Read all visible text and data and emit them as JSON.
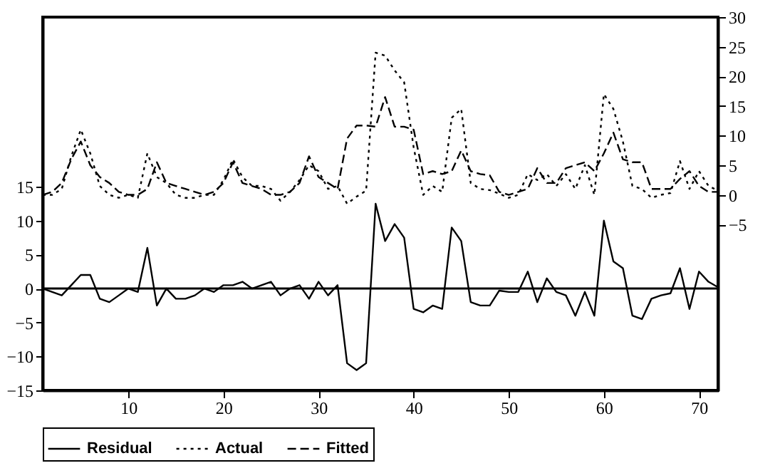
{
  "chart_data": {
    "type": "line",
    "x": [
      1,
      2,
      3,
      4,
      5,
      6,
      7,
      8,
      9,
      10,
      11,
      12,
      13,
      14,
      15,
      16,
      17,
      18,
      19,
      20,
      21,
      22,
      23,
      24,
      25,
      26,
      27,
      28,
      29,
      30,
      31,
      32,
      33,
      34,
      35,
      36,
      37,
      38,
      39,
      40,
      41,
      42,
      43,
      44,
      45,
      46,
      47,
      48,
      49,
      50,
      51,
      52,
      53,
      54,
      55,
      56,
      57,
      58,
      59,
      60,
      61,
      62,
      63,
      64,
      65,
      66,
      67,
      68,
      69,
      70,
      71,
      72
    ],
    "series": [
      {
        "name": "Residual",
        "color": "#000000",
        "line_style": "solid",
        "values": [
          0,
          -0.5,
          -1,
          0.5,
          2,
          2,
          -1.5,
          -2,
          -1,
          0,
          -0.5,
          6,
          -2.5,
          0,
          -1.5,
          -1.5,
          -1,
          0,
          -0.5,
          0.5,
          0.5,
          1,
          0,
          0.5,
          1,
          -1,
          0,
          0.5,
          -1.5,
          1,
          -1,
          0.5,
          -11,
          -12,
          -11,
          12.5,
          7,
          9.5,
          7.5,
          -3,
          -3.5,
          -2.5,
          -3,
          9,
          7,
          -2,
          -2.5,
          -2.5,
          -0.3,
          -0.5,
          -0.5,
          2.5,
          -2,
          1.5,
          -0.5,
          -1,
          -4,
          -0.5,
          -4,
          10,
          4,
          3,
          -4,
          -4.5,
          -1.5,
          -1,
          -0.7,
          3,
          -3,
          2.5,
          1,
          0.2
        ]
      },
      {
        "name": "Actual",
        "color": "#000000",
        "line_style": "dotted",
        "axis": "y2",
        "values": [
          0,
          0,
          1,
          6.5,
          11,
          7,
          1.5,
          0,
          -0.5,
          0,
          -0.5,
          7,
          3,
          2,
          0,
          -0.5,
          -0.5,
          0,
          0,
          2.5,
          6,
          3,
          1.5,
          1.5,
          1,
          -1,
          0.5,
          2.5,
          5,
          4,
          1,
          1.5,
          -1.5,
          -0.3,
          0.7,
          24,
          23.5,
          21,
          19,
          8,
          0,
          1.5,
          0.5,
          13,
          14.5,
          2,
          1,
          0.8,
          0.2,
          -0.5,
          0,
          3.5,
          2.5,
          3.5,
          1.5,
          3.5,
          1,
          5,
          0,
          17,
          14.5,
          9,
          1.5,
          1,
          -0.5,
          0,
          0.3,
          5.7,
          1,
          4,
          1.5,
          0.7
        ]
      },
      {
        "name": "Fitted",
        "color": "#000000",
        "line_style": "dashed",
        "axis": "y2",
        "values": [
          0,
          0.5,
          2,
          6,
          9,
          5,
          3,
          2,
          0.5,
          0,
          0,
          1,
          5.5,
          2,
          1.5,
          1,
          0.5,
          0,
          0.5,
          2,
          5.5,
          2,
          1.5,
          1,
          0,
          0,
          0.5,
          2,
          6.5,
          3,
          2,
          1,
          9.5,
          11.7,
          11.7,
          11.5,
          16.5,
          11.5,
          11.5,
          11,
          3.5,
          4,
          3.5,
          4,
          7.5,
          4,
          3.5,
          3.3,
          0.5,
          0,
          0.5,
          1,
          4.5,
          2,
          2,
          4.5,
          5,
          5.5,
          4,
          7,
          10.5,
          6,
          5.5,
          5.5,
          1,
          1,
          1,
          2.7,
          4,
          1.5,
          0.5,
          0.5
        ]
      }
    ],
    "xlim": [
      1,
      72
    ],
    "xticks": [
      10,
      20,
      30,
      40,
      50,
      60,
      70
    ],
    "ylim": [
      -15,
      40
    ],
    "yticks": [
      -15,
      -10,
      -5,
      0,
      5,
      10,
      15
    ],
    "y2lim": [
      -33,
      30
    ],
    "y2ticks": [
      -5,
      0,
      5,
      10,
      15,
      20,
      25,
      30
    ],
    "ref_lines": [
      {
        "axis": "y",
        "value": 0,
        "color": "#000000",
        "line_style": "solid"
      }
    ],
    "grid": false,
    "legend": "bottom",
    "marker": "none"
  }
}
